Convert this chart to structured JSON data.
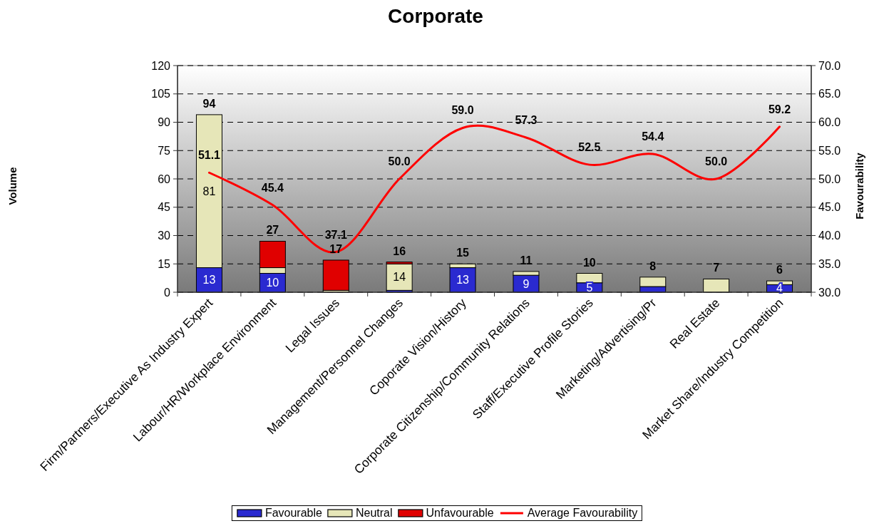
{
  "chart_data": {
    "type": "bar",
    "title": "Corporate",
    "ylabel": "Volume",
    "y2label": "Favourability",
    "categories": [
      "Firm/Partners/Executive As Industry Expert",
      "Labour/HR/Workplace Environment",
      "Legal Issues",
      "Management/Personnel Changes",
      "Coporate Vision/History",
      "Corporate Citizenship/Community Relations",
      "Staff/Executive Profile Stories",
      "Marketing/Advertising/Pr",
      "Real Estate",
      "Market Share/Industry Competition"
    ],
    "stacked": true,
    "series": [
      {
        "name": "Favourable",
        "color": "#2a2ad0",
        "values": [
          13,
          10,
          0,
          1,
          13,
          9,
          5,
          3,
          0,
          4
        ],
        "value_labels": [
          "13",
          "10",
          null,
          null,
          "13",
          "9",
          "5",
          null,
          null,
          "4"
        ]
      },
      {
        "name": "Neutral",
        "color": "#e6e6b8",
        "values": [
          81,
          3,
          1,
          14,
          2,
          2,
          5,
          5,
          7,
          2
        ],
        "value_labels": [
          "81",
          null,
          null,
          "14",
          null,
          null,
          null,
          null,
          null,
          null
        ]
      },
      {
        "name": "Unfavourable",
        "color": "#e00000",
        "values": [
          0,
          14,
          16,
          1,
          0,
          0,
          0,
          0,
          0,
          0
        ]
      },
      {
        "name": "Average Favourability",
        "type": "line",
        "axis": "y2",
        "color": "#ff0000",
        "values": [
          51.1,
          45.4,
          37.1,
          50.0,
          59.0,
          57.3,
          52.5,
          54.4,
          50.0,
          59.2
        ],
        "value_labels": [
          "51.1",
          "45.4",
          "37.1",
          "50.0",
          "59.0",
          "57.3",
          "52.5",
          "54.4",
          "50.0",
          "59.2"
        ]
      }
    ],
    "totals": [
      "94",
      "27",
      "17",
      "16",
      "15",
      "11",
      "10",
      "8",
      "7",
      "6"
    ],
    "ylim": [
      0,
      120
    ],
    "yticks": [
      0,
      15,
      30,
      45,
      60,
      75,
      90,
      105,
      120
    ],
    "y2lim": [
      30,
      70
    ],
    "y2ticks": [
      {
        "value": 30,
        "label": "30.0"
      },
      {
        "value": 35,
        "label": "35.0"
      },
      {
        "value": 40,
        "label": "40.0"
      },
      {
        "value": 45,
        "label": "45.0"
      },
      {
        "value": 50,
        "label": "50.0"
      },
      {
        "value": 55,
        "label": "55.0"
      },
      {
        "value": 60,
        "label": "60.0"
      },
      {
        "value": 65,
        "label": "65.0"
      },
      {
        "value": 70,
        "label": "70.0"
      }
    ],
    "grid": "y",
    "legend": "bottom"
  }
}
